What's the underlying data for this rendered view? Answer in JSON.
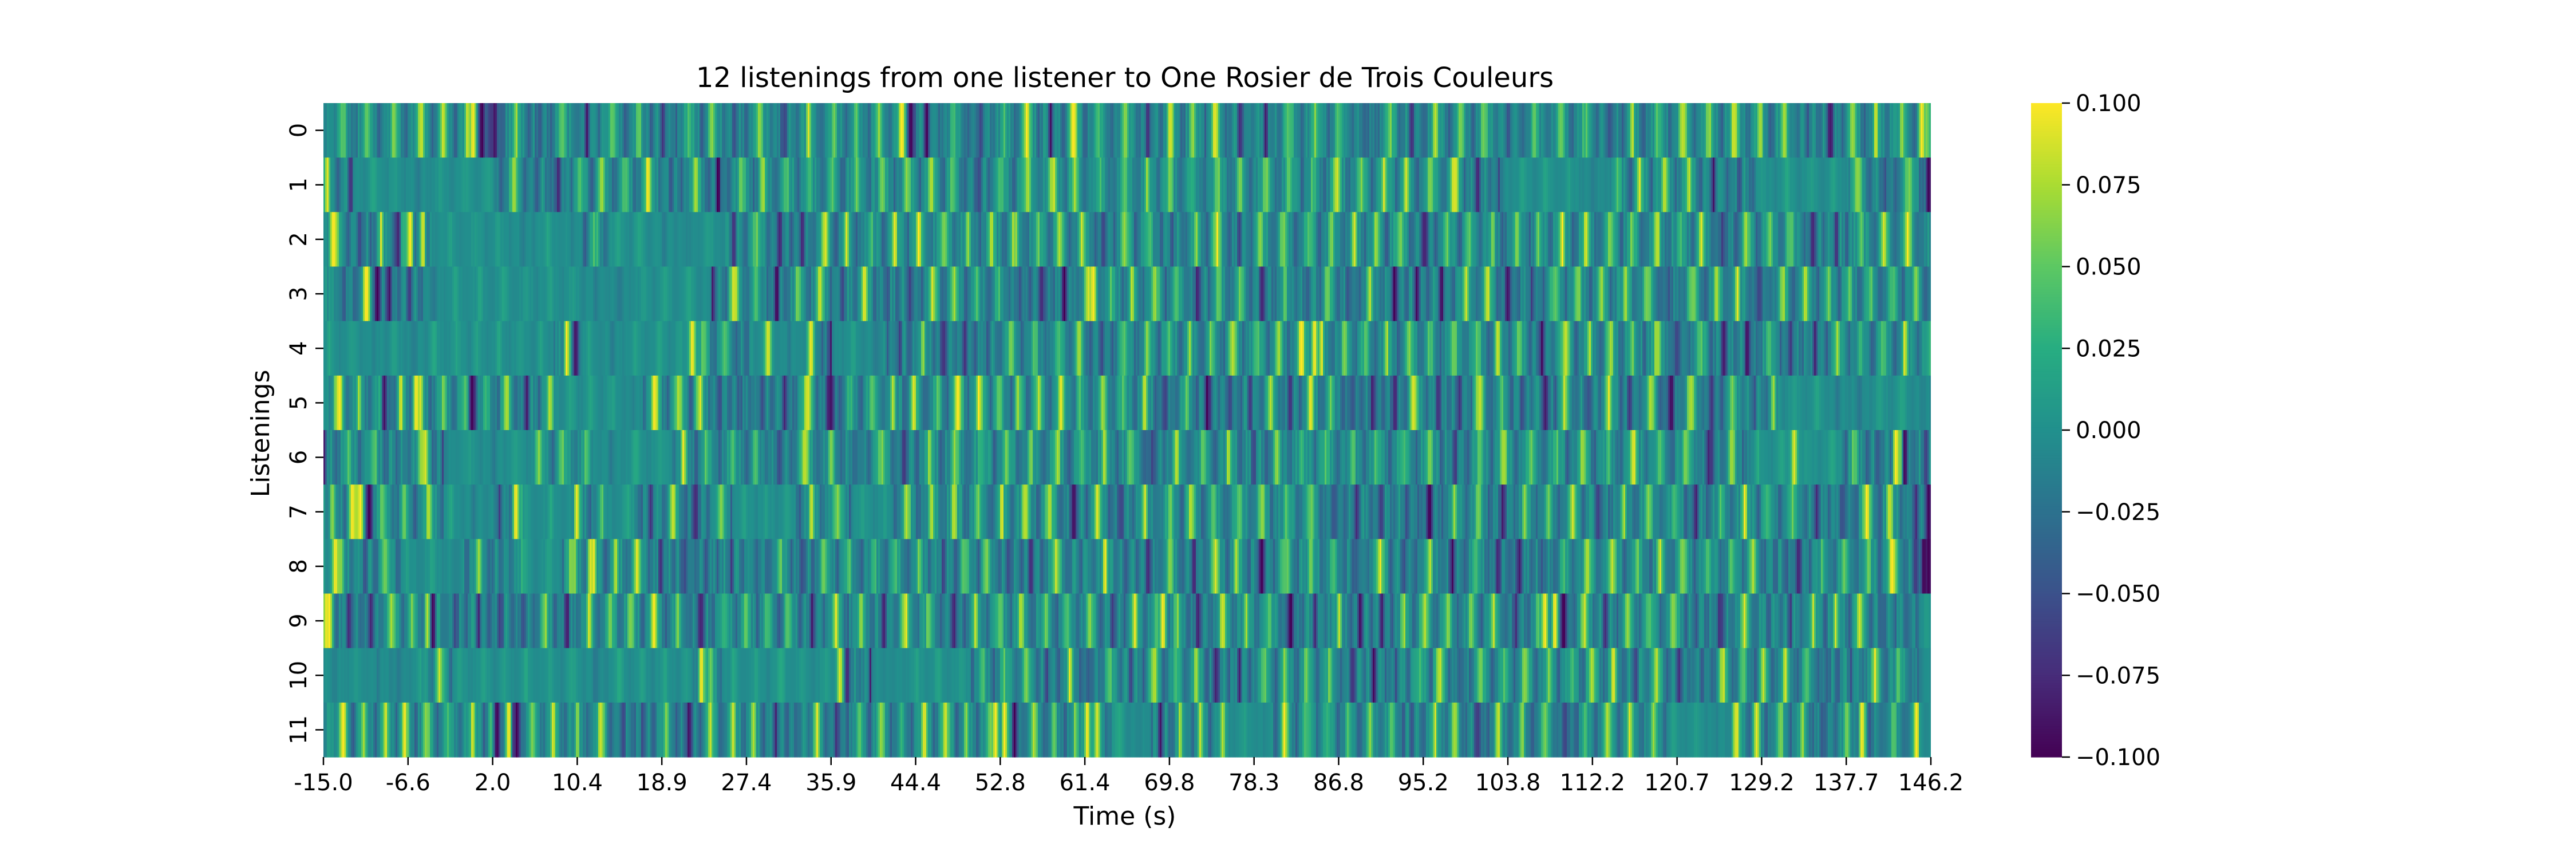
{
  "chart_data": {
    "type": "heatmap",
    "title": "12 listenings from one listener to One Rosier de Trois Couleurs",
    "xlabel": "Time (s)",
    "ylabel": "Listenings",
    "x_range": [
      -15.0,
      146.2
    ],
    "x_ticks": [
      "-15.0",
      "-6.6",
      "2.0",
      "10.4",
      "18.9",
      "27.4",
      "35.9",
      "44.4",
      "52.8",
      "61.4",
      "69.8",
      "78.3",
      "86.8",
      "95.2",
      "103.8",
      "112.2",
      "120.7",
      "129.2",
      "137.7",
      "146.2"
    ],
    "rows": [
      "0",
      "1",
      "2",
      "3",
      "4",
      "5",
      "6",
      "7",
      "8",
      "9",
      "10",
      "11"
    ],
    "colormap": "viridis",
    "color_range": [
      -0.1,
      0.1
    ],
    "colorbar_ticks": [
      "0.100",
      "0.075",
      "0.050",
      "0.025",
      "0.000",
      "−0.025",
      "−0.050",
      "−0.075",
      "−0.100"
    ],
    "colorbar_tick_values": [
      0.1,
      0.075,
      0.05,
      0.025,
      0.0,
      -0.025,
      -0.05,
      -0.075,
      -0.1
    ],
    "listenings": [
      {
        "row": 0,
        "quiet_spans": [],
        "strong_events": [
          {
            "t": 0.0,
            "v": 0.1
          },
          {
            "t": 0.9,
            "v": -0.1
          },
          {
            "t": 2.2,
            "v": -0.09
          },
          {
            "t": 43.9,
            "v": -0.1
          },
          {
            "t": 45.5,
            "v": -0.1
          },
          {
            "t": 43.0,
            "v": 0.1
          },
          {
            "t": 60.2,
            "v": 0.1
          },
          {
            "t": 145.3,
            "v": 0.1
          }
        ]
      },
      {
        "row": 1,
        "quiet_spans": [
          [
            -12,
            2
          ],
          [
            103,
            114
          ],
          [
            129,
            138
          ]
        ],
        "strong_events": [
          {
            "t": 146.0,
            "v": -0.1
          },
          {
            "t": 98.5,
            "v": 0.09
          }
        ]
      },
      {
        "row": 2,
        "quiet_spans": [
          [
            -4,
            11
          ],
          [
            14,
            25
          ]
        ],
        "strong_events": [
          {
            "t": -14.0,
            "v": 0.1
          },
          {
            "t": -6.3,
            "v": 0.1
          },
          {
            "t": -5.0,
            "v": 0.09
          },
          {
            "t": -7.5,
            "v": -0.08
          }
        ]
      },
      {
        "row": 3,
        "quiet_spans": [
          [
            -5,
            24
          ]
        ],
        "strong_events": [
          {
            "t": -10.7,
            "v": 0.1
          },
          {
            "t": -9.6,
            "v": -0.1
          },
          {
            "t": 59.3,
            "v": -0.1
          },
          {
            "t": 62.2,
            "v": 0.1
          }
        ]
      },
      {
        "row": 4,
        "quiet_spans": [
          [
            -15,
            8
          ],
          [
            10,
            22
          ],
          [
            28,
            33
          ],
          [
            36,
            41
          ]
        ],
        "strong_events": [
          {
            "t": 9.4,
            "v": 0.1
          },
          {
            "t": 10.3,
            "v": -0.09
          },
          {
            "t": 22.0,
            "v": 0.1
          },
          {
            "t": 29.6,
            "v": 0.09
          },
          {
            "t": 84.4,
            "v": 0.1
          }
        ]
      },
      {
        "row": 5,
        "quiet_spans": [
          [
            8,
            17
          ],
          [
            131,
            146
          ]
        ],
        "strong_events": [
          {
            "t": -13.4,
            "v": 0.1
          },
          {
            "t": -8.9,
            "v": -0.09
          },
          {
            "t": -5.7,
            "v": 0.1
          },
          {
            "t": -0.1,
            "v": -0.1
          },
          {
            "t": 18.2,
            "v": 0.1
          },
          {
            "t": 33.6,
            "v": 0.09
          },
          {
            "t": 35.9,
            "v": -0.09
          },
          {
            "t": 94.3,
            "v": 0.09
          }
        ]
      },
      {
        "row": 6,
        "quiet_spans": [
          [
            -3,
            6
          ],
          [
            12,
            20
          ],
          [
            129,
            137
          ]
        ],
        "strong_events": [
          {
            "t": -4.8,
            "v": 0.09
          },
          {
            "t": 142.7,
            "v": 0.1
          },
          {
            "t": 143.6,
            "v": -0.1
          },
          {
            "t": 132.5,
            "v": 0.09
          }
        ]
      },
      {
        "row": 7,
        "quiet_spans": [
          [
            -3,
            2
          ],
          [
            5,
            10
          ],
          [
            13,
            16
          ],
          [
            26,
            32
          ],
          [
            38,
            42
          ]
        ],
        "strong_events": [
          {
            "t": -12.1,
            "v": 0.1
          },
          {
            "t": -11.3,
            "v": 0.1
          },
          {
            "t": -10.4,
            "v": -0.1
          },
          {
            "t": 4.3,
            "v": 0.1
          },
          {
            "t": 146.0,
            "v": -0.1
          }
        ]
      },
      {
        "row": 8,
        "quiet_spans": [
          [
            -7,
            -1
          ],
          [
            5,
            9
          ]
        ],
        "strong_events": [
          {
            "t": -13.8,
            "v": 0.1
          },
          {
            "t": 11.8,
            "v": 0.09
          },
          {
            "t": 142.3,
            "v": 0.1
          },
          {
            "t": 145.5,
            "v": -0.1
          },
          {
            "t": 146.0,
            "v": -0.1
          }
        ]
      },
      {
        "row": 9,
        "quiet_spans": [
          [
            145,
            146.2
          ]
        ],
        "strong_events": [
          {
            "t": -14.4,
            "v": 0.1
          },
          {
            "t": -4.5,
            "v": 0.09
          },
          {
            "t": -4.0,
            "v": -0.1
          },
          {
            "t": 69.2,
            "v": 0.1
          },
          {
            "t": 107.5,
            "v": 0.1
          },
          {
            "t": 108.5,
            "v": 0.1
          },
          {
            "t": 109.4,
            "v": -0.1
          }
        ]
      },
      {
        "row": 10,
        "quiet_spans": [
          [
            -15,
            -5
          ],
          [
            -2,
            22
          ],
          [
            25,
            37
          ],
          [
            40,
            50
          ],
          [
            145,
            146.2
          ]
        ],
        "strong_events": [
          {
            "t": 22.9,
            "v": 0.1
          },
          {
            "t": 36.8,
            "v": 0.09
          }
        ]
      },
      {
        "row": 11,
        "quiet_spans": [
          [
            64,
            68
          ],
          [
            76,
            80
          ],
          [
            120,
            126
          ],
          [
            145,
            146.2
          ]
        ],
        "strong_events": [
          {
            "t": -13.0,
            "v": 0.1
          },
          {
            "t": 2.4,
            "v": -0.1
          },
          {
            "t": 3.6,
            "v": 0.1
          },
          {
            "t": 4.4,
            "v": -0.1
          },
          {
            "t": 52.4,
            "v": 0.1
          },
          {
            "t": 53.3,
            "v": 0.1
          },
          {
            "t": 54.3,
            "v": -0.1
          },
          {
            "t": 61.6,
            "v": 0.1
          },
          {
            "t": 139.3,
            "v": 0.1
          }
        ]
      }
    ]
  }
}
